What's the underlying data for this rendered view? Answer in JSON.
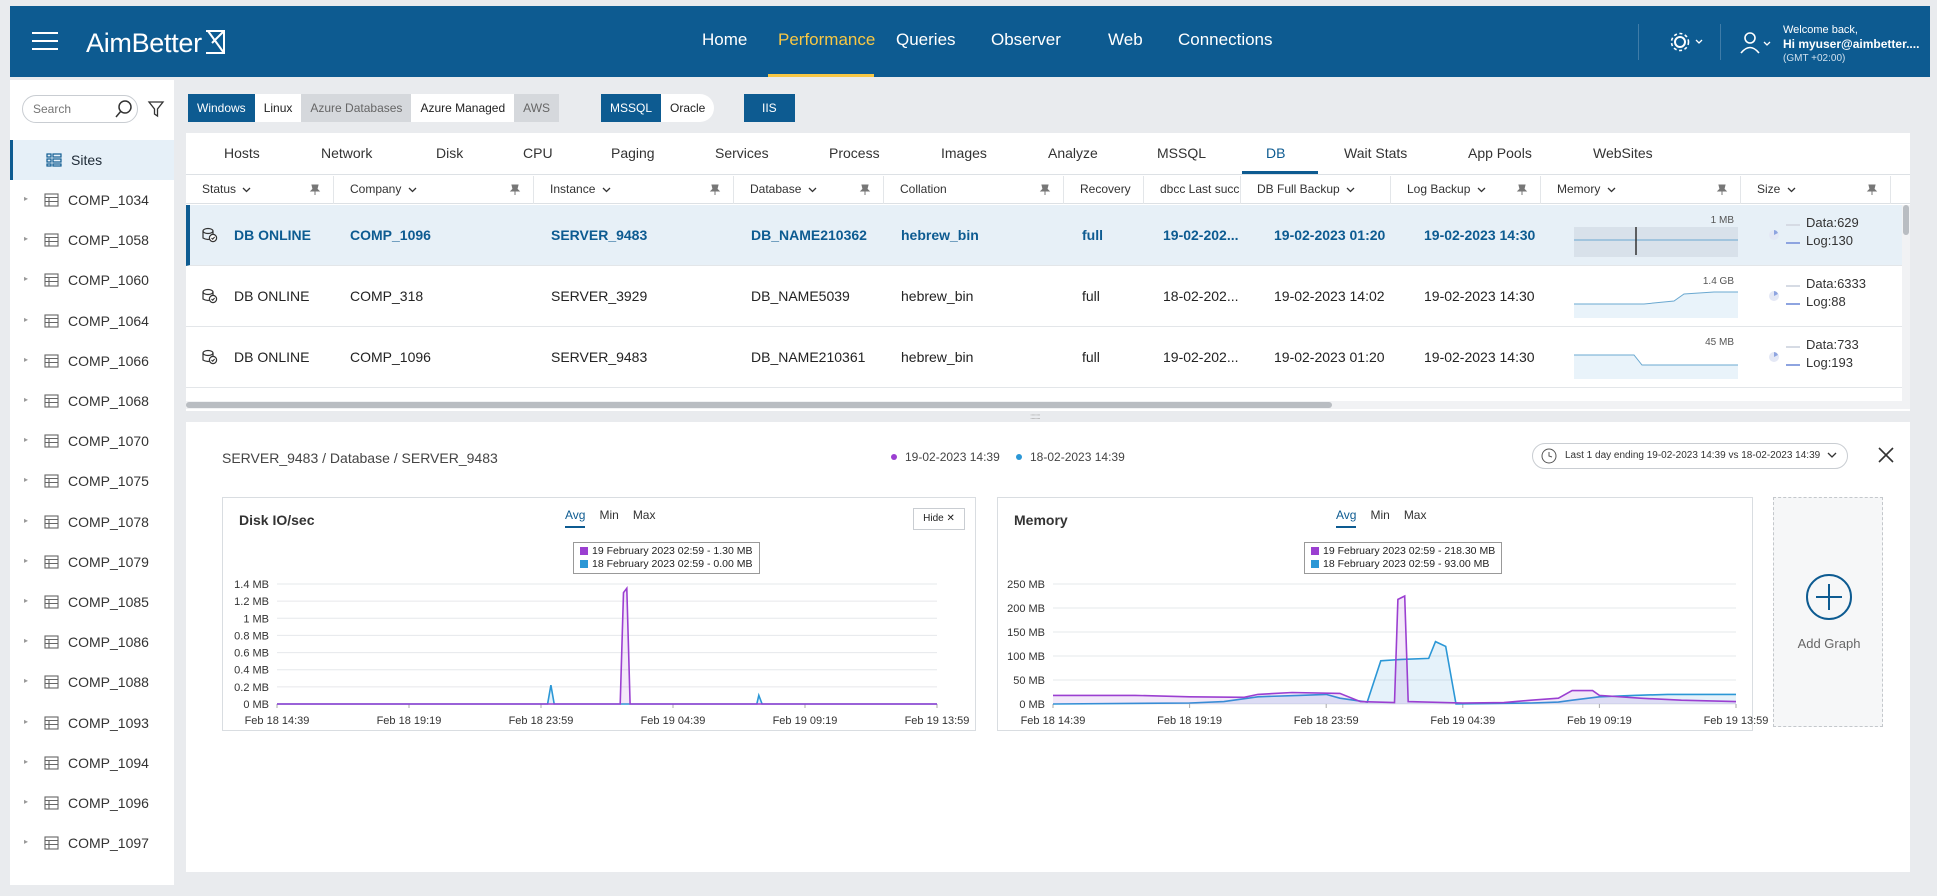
{
  "app": {
    "brand": "AimBetter"
  },
  "nav": {
    "items": [
      "Home",
      "Performance",
      "Queries",
      "Observer",
      "Web",
      "Connections"
    ],
    "active": "Performance"
  },
  "user": {
    "welcome": "Welcome back,",
    "name": "Hi myuser@aimbetter....",
    "tz": "(GMT +02:00)"
  },
  "sidebar": {
    "search_placeholder": "Search",
    "sites_label": "Sites",
    "companies": [
      "COMP_1034",
      "COMP_1058",
      "COMP_1060",
      "COMP_1064",
      "COMP_1066",
      "COMP_1068",
      "COMP_1070",
      "COMP_1075",
      "COMP_1078",
      "COMP_1079",
      "COMP_1085",
      "COMP_1086",
      "COMP_1088",
      "COMP_1093",
      "COMP_1094",
      "COMP_1096",
      "COMP_1097"
    ]
  },
  "filters": {
    "os": [
      "Windows",
      "Linux",
      "Azure Databases",
      "Azure Managed",
      "AWS"
    ],
    "db": [
      "MSSQL",
      "Oracle"
    ],
    "web": "IIS"
  },
  "tabs": [
    "Hosts",
    "Network",
    "Disk",
    "CPU",
    "Paging",
    "Services",
    "Process",
    "Images",
    "Analyze",
    "MSSQL",
    "DB",
    "Wait Stats",
    "App Pools",
    "WebSites"
  ],
  "active_tab": "DB",
  "columns": [
    "Status",
    "Company",
    "Instance",
    "Database",
    "Collation",
    "Recovery",
    "dbcc Last succ",
    "DB Full Backup",
    "Log Backup",
    "Memory",
    "Size"
  ],
  "rows": [
    {
      "status": "DB ONLINE",
      "company": "COMP_1096",
      "instance": "SERVER_9483",
      "database": "DB_NAME210362",
      "collation": "hebrew_bin",
      "recovery": "full",
      "dbcc": "19-02-202...",
      "full_backup": "19-02-2023 01:20",
      "log_backup": "19-02-2023 14:30",
      "memory_label": "1 MB",
      "data": "Data:629",
      "log": "Log:130",
      "selected": true
    },
    {
      "status": "DB ONLINE",
      "company": "COMP_318",
      "instance": "SERVER_3929",
      "database": "DB_NAME5039",
      "collation": "hebrew_bin",
      "recovery": "full",
      "dbcc": "18-02-202...",
      "full_backup": "19-02-2023 14:02",
      "log_backup": "19-02-2023 14:30",
      "memory_label": "1.4 GB",
      "data": "Data:6333",
      "log": "Log:88",
      "selected": false
    },
    {
      "status": "DB ONLINE",
      "company": "COMP_1096",
      "instance": "SERVER_9483",
      "database": "DB_NAME210361",
      "collation": "hebrew_bin",
      "recovery": "full",
      "dbcc": "19-02-202...",
      "full_backup": "19-02-2023 01:20",
      "log_backup": "19-02-2023 14:30",
      "memory_label": "45 MB",
      "data": "Data:733",
      "log": "Log:193",
      "selected": false
    }
  ],
  "detail": {
    "breadcrumb": "SERVER_9483 / Database / SERVER_9483",
    "legend": [
      {
        "label": "19-02-2023 14:39",
        "color": "#9b3fd1"
      },
      {
        "label": "18-02-2023 14:39",
        "color": "#2b97d6"
      }
    ],
    "range": "Last 1 day ending  19-02-2023 14:39 vs 18-02-2023 14:39",
    "add_graph": "Add Graph",
    "hide": "Hide",
    "agg": [
      "Avg",
      "Min",
      "Max"
    ]
  },
  "chart_data": [
    {
      "type": "line",
      "title": "Disk IO/sec",
      "x": [
        "Feb 18 14:39",
        "Feb 18 19:19",
        "Feb 18 23:59",
        "Feb 19 04:39",
        "Feb 19 09:19",
        "Feb 19 13:59"
      ],
      "ytick_labels": [
        "0 MB",
        "0.2 MB",
        "0.4 MB",
        "0.6 MB",
        "0.8 MB",
        "1 MB",
        "1.2 MB",
        "1.4 MB"
      ],
      "ylim": [
        0,
        1.4
      ],
      "tooltip": [
        "19 February 2023 02:59 - 1.30 MB",
        "18 February 2023 02:59 - 0.00 MB"
      ],
      "series": [
        {
          "name": "19-02-2023 14:39",
          "color": "#9b3fd1",
          "points": [
            [
              0,
              0
            ],
            [
              0.52,
              0
            ],
            [
              0.525,
              1.3
            ],
            [
              0.53,
              1.35
            ],
            [
              0.535,
              0
            ],
            [
              1,
              0
            ]
          ]
        },
        {
          "name": "18-02-2023 14:39",
          "color": "#2b97d6",
          "points": [
            [
              0,
              0
            ],
            [
              0.41,
              0
            ],
            [
              0.415,
              0.22
            ],
            [
              0.42,
              0
            ],
            [
              0.727,
              0
            ],
            [
              0.73,
              0.1
            ],
            [
              0.735,
              0
            ],
            [
              1,
              0
            ]
          ]
        }
      ]
    },
    {
      "type": "line",
      "title": "Memory",
      "x": [
        "Feb 18 14:39",
        "Feb 18 19:19",
        "Feb 18 23:59",
        "Feb 19 04:39",
        "Feb 19 09:19",
        "Feb 19 13:59"
      ],
      "ytick_labels": [
        "0 MB",
        "50 MB",
        "100 MB",
        "150 MB",
        "200 MB",
        "250 MB"
      ],
      "ylim": [
        0,
        250
      ],
      "tooltip": [
        "19 February 2023 02:59 - 218.30 MB",
        "18 February 2023 02:59 - 93.00 MB"
      ],
      "series": [
        {
          "name": "19-02-2023 14:39",
          "color": "#9b3fd1",
          "points": [
            [
              0,
              18
            ],
            [
              0.12,
              18
            ],
            [
              0.2,
              15
            ],
            [
              0.28,
              14
            ],
            [
              0.3,
              20
            ],
            [
              0.35,
              24
            ],
            [
              0.42,
              22
            ],
            [
              0.45,
              5
            ],
            [
              0.5,
              3
            ],
            [
              0.505,
              218
            ],
            [
              0.515,
              225
            ],
            [
              0.52,
              5
            ],
            [
              0.6,
              2
            ],
            [
              0.66,
              3
            ],
            [
              0.7,
              8
            ],
            [
              0.74,
              12
            ],
            [
              0.76,
              28
            ],
            [
              0.79,
              28
            ],
            [
              0.8,
              18
            ],
            [
              0.86,
              12
            ],
            [
              0.92,
              8
            ],
            [
              1,
              5
            ]
          ]
        },
        {
          "name": "18-02-2023 14:39",
          "color": "#2b97d6",
          "points": [
            [
              0,
              0
            ],
            [
              0.2,
              2
            ],
            [
              0.25,
              5
            ],
            [
              0.3,
              15
            ],
            [
              0.36,
              18
            ],
            [
              0.4,
              20
            ],
            [
              0.42,
              12
            ],
            [
              0.46,
              4
            ],
            [
              0.48,
              90
            ],
            [
              0.51,
              93
            ],
            [
              0.55,
              95
            ],
            [
              0.56,
              130
            ],
            [
              0.575,
              120
            ],
            [
              0.59,
              0
            ],
            [
              0.7,
              2
            ],
            [
              0.74,
              4
            ],
            [
              0.76,
              8
            ],
            [
              0.8,
              15
            ],
            [
              0.85,
              18
            ],
            [
              0.9,
              20
            ],
            [
              1,
              20
            ]
          ]
        }
      ]
    }
  ]
}
